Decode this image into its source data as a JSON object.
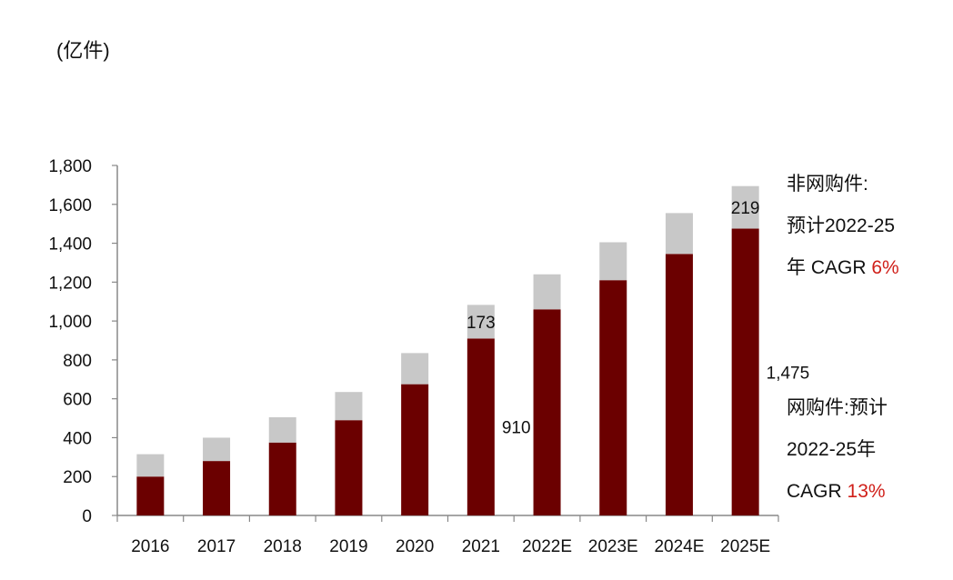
{
  "unit_label": "(亿件)",
  "chart_data": {
    "type": "bar",
    "stacked": true,
    "categories": [
      "2016",
      "2017",
      "2018",
      "2019",
      "2020",
      "2021",
      "2022E",
      "2023E",
      "2024E",
      "2025E"
    ],
    "series": [
      {
        "name": "网购件",
        "color": "#6b0000",
        "values": [
          200,
          280,
          375,
          490,
          675,
          910,
          1060,
          1210,
          1345,
          1475
        ]
      },
      {
        "name": "非网购件",
        "color": "#c8c8c8",
        "values": [
          115,
          120,
          130,
          145,
          160,
          173,
          180,
          195,
          210,
          219
        ]
      }
    ],
    "ylim": [
      0,
      1800
    ],
    "yticks": [
      "0",
      "200",
      "400",
      "600",
      "800",
      "1,000",
      "1,200",
      "1,400",
      "1,600",
      "1,800"
    ],
    "data_labels": [
      {
        "text": "173",
        "category": "2021",
        "series": "非网购件"
      },
      {
        "text": "910",
        "category": "2021",
        "series": "网购件"
      },
      {
        "text": "219",
        "category": "2025E",
        "series": "非网购件"
      },
      {
        "text": "1,475",
        "category": "2025E",
        "series": "网购件"
      }
    ],
    "grid": false
  },
  "notes": {
    "non_online": {
      "line1": "非网购件:",
      "line2": "预计2022-25",
      "line3_prefix": "年 CAGR ",
      "line3_value": "6%"
    },
    "online": {
      "line1": "网购件:预计",
      "line2": "2022-25年",
      "line3_prefix": "CAGR ",
      "line3_value": "13%"
    }
  }
}
